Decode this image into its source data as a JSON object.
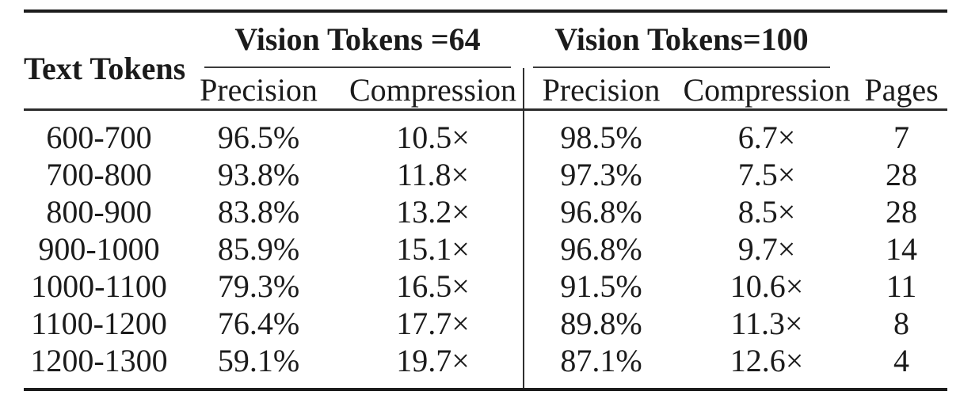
{
  "table": {
    "row_header_label": "Text Tokens",
    "pages_label": "Pages",
    "groups": [
      {
        "label": "Vision Tokens =64",
        "columns": [
          "Precision",
          "Compression"
        ]
      },
      {
        "label": "Vision Tokens=100",
        "columns": [
          "Precision",
          "Compression"
        ]
      }
    ],
    "rows": [
      {
        "text_tokens": "600-700",
        "g1_precision": "96.5%",
        "g1_compression": "10.5×",
        "g2_precision": "98.5%",
        "g2_compression": "6.7×",
        "pages": "7"
      },
      {
        "text_tokens": "700-800",
        "g1_precision": "93.8%",
        "g1_compression": "11.8×",
        "g2_precision": "97.3%",
        "g2_compression": "7.5×",
        "pages": "28"
      },
      {
        "text_tokens": "800-900",
        "g1_precision": "83.8%",
        "g1_compression": "13.2×",
        "g2_precision": "96.8%",
        "g2_compression": "8.5×",
        "pages": "28"
      },
      {
        "text_tokens": "900-1000",
        "g1_precision": "85.9%",
        "g1_compression": "15.1×",
        "g2_precision": "96.8%",
        "g2_compression": "9.7×",
        "pages": "14"
      },
      {
        "text_tokens": "1000-1100",
        "g1_precision": "79.3%",
        "g1_compression": "16.5×",
        "g2_precision": "91.5%",
        "g2_compression": "10.6×",
        "pages": "11"
      },
      {
        "text_tokens": "1100-1200",
        "g1_precision": "76.4%",
        "g1_compression": "17.7×",
        "g2_precision": "89.8%",
        "g2_compression": "11.3×",
        "pages": "8"
      },
      {
        "text_tokens": "1200-1300",
        "g1_precision": "59.1%",
        "g1_compression": "19.7×",
        "g2_precision": "87.1%",
        "g2_compression": "12.6×",
        "pages": "4"
      }
    ],
    "colors": {
      "rule_heavy": "#1c1c1c",
      "rule_mid": "#2b2b2b",
      "rule_light": "#3c3c3c",
      "text": "#1b1b1b",
      "background": "#ffffff"
    }
  }
}
